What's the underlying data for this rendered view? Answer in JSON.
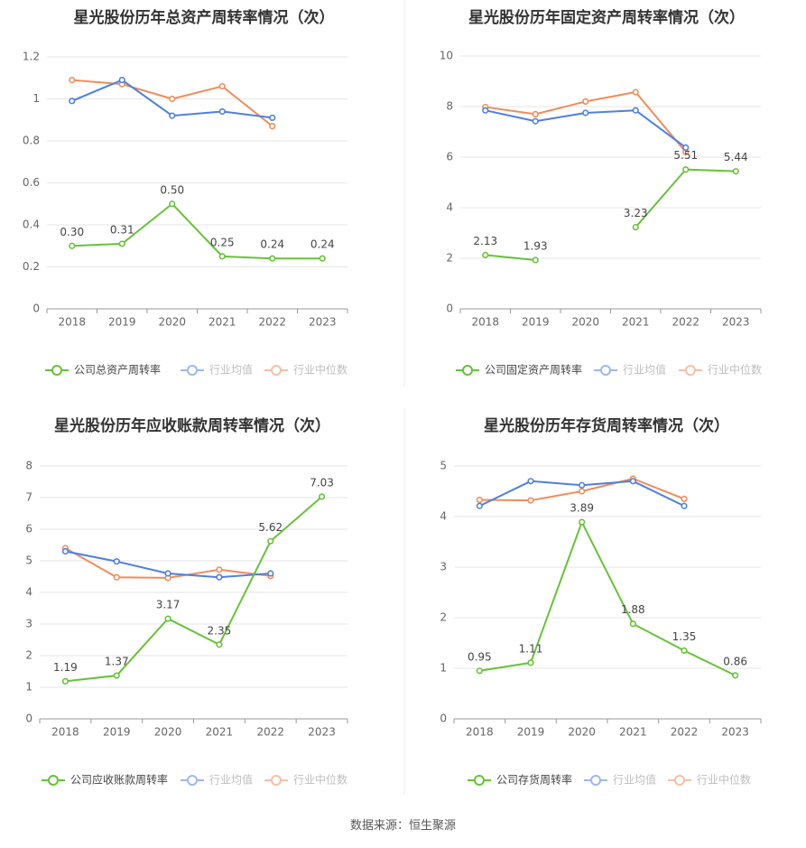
{
  "colors": {
    "company": "#67c23a",
    "industry_avg": "#4f7fe0",
    "industry_median": "#f08c5a"
  },
  "legend": {
    "industry_avg": "行业均值",
    "industry_median": "行业中位数"
  },
  "source": "数据来源：恒生聚源",
  "chart_data": [
    {
      "type": "line",
      "title": "星光股份历年总资产周转率情况（次）",
      "x": [
        "2018",
        "2019",
        "2020",
        "2021",
        "2022",
        "2023"
      ],
      "yticks": [
        "0",
        "0.2",
        "0.4",
        "0.6",
        "0.8",
        "1",
        "1.2"
      ],
      "ylim": [
        0,
        1.2
      ],
      "grid": true,
      "legend_position": "bottom",
      "series": [
        {
          "name": "公司总资产周转率",
          "role": "company",
          "values": [
            0.3,
            0.31,
            0.5,
            0.25,
            0.24,
            0.24
          ],
          "labels": [
            "0.30",
            "0.31",
            "0.50",
            "0.25",
            "0.24",
            "0.24"
          ]
        },
        {
          "name": "行业均值",
          "role": "industry_avg",
          "values": [
            0.99,
            1.09,
            0.92,
            0.94,
            0.91,
            null
          ]
        },
        {
          "name": "行业中位数",
          "role": "industry_median",
          "values": [
            1.09,
            1.07,
            1.0,
            1.06,
            0.87,
            null
          ]
        }
      ]
    },
    {
      "type": "line",
      "title": "星光股份历年固定资产周转率情况（次）",
      "x": [
        "2018",
        "2019",
        "2020",
        "2021",
        "2022",
        "2023"
      ],
      "yticks": [
        "0",
        "2",
        "4",
        "6",
        "8",
        "10"
      ],
      "ylim": [
        0,
        10
      ],
      "grid": true,
      "legend_position": "bottom",
      "series": [
        {
          "name": "公司固定资产周转率",
          "role": "company",
          "values": [
            2.13,
            1.93,
            null,
            3.23,
            5.51,
            5.44
          ],
          "labels": [
            "2.13",
            "1.93",
            "",
            "3.23",
            "5.51",
            "5.44"
          ]
        },
        {
          "name": "行业均值",
          "role": "industry_avg",
          "values": [
            7.85,
            7.42,
            7.75,
            7.85,
            6.38,
            null
          ]
        },
        {
          "name": "行业中位数",
          "role": "industry_median",
          "values": [
            7.98,
            7.7,
            8.2,
            8.57,
            6.2,
            null
          ]
        }
      ]
    },
    {
      "type": "line",
      "title": "星光股份历年应收账款周转率情况（次）",
      "x": [
        "2018",
        "2019",
        "2020",
        "2021",
        "2022",
        "2023"
      ],
      "yticks": [
        "0",
        "1",
        "2",
        "3",
        "4",
        "5",
        "6",
        "7",
        "8"
      ],
      "ylim": [
        0,
        8
      ],
      "grid": true,
      "legend_position": "bottom",
      "series": [
        {
          "name": "公司应收账款周转率",
          "role": "company",
          "values": [
            1.19,
            1.37,
            3.17,
            2.35,
            5.62,
            7.03
          ],
          "labels": [
            "1.19",
            "1.37",
            "3.17",
            "2.35",
            "5.62",
            "7.03"
          ]
        },
        {
          "name": "行业均值",
          "role": "industry_avg",
          "values": [
            5.3,
            4.98,
            4.6,
            4.48,
            4.6,
            null
          ]
        },
        {
          "name": "行业中位数",
          "role": "industry_median",
          "values": [
            5.4,
            4.48,
            4.46,
            4.72,
            4.52,
            null
          ]
        }
      ]
    },
    {
      "type": "line",
      "title": "星光股份历年存货周转率情况（次）",
      "x": [
        "2018",
        "2019",
        "2020",
        "2021",
        "2022",
        "2023"
      ],
      "yticks": [
        "0",
        "1",
        "2",
        "3",
        "4",
        "5"
      ],
      "ylim": [
        0,
        5
      ],
      "grid": true,
      "legend_position": "bottom",
      "series": [
        {
          "name": "公司存货周转率",
          "role": "company",
          "values": [
            0.95,
            1.11,
            3.89,
            1.88,
            1.35,
            0.86
          ],
          "labels": [
            "0.95",
            "1.11",
            "3.89",
            "1.88",
            "1.35",
            "0.86"
          ]
        },
        {
          "name": "行业均值",
          "role": "industry_avg",
          "values": [
            4.21,
            4.7,
            4.62,
            4.7,
            4.21,
            null
          ]
        },
        {
          "name": "行业中位数",
          "role": "industry_median",
          "values": [
            4.33,
            4.32,
            4.5,
            4.75,
            4.35,
            null
          ]
        }
      ]
    }
  ]
}
